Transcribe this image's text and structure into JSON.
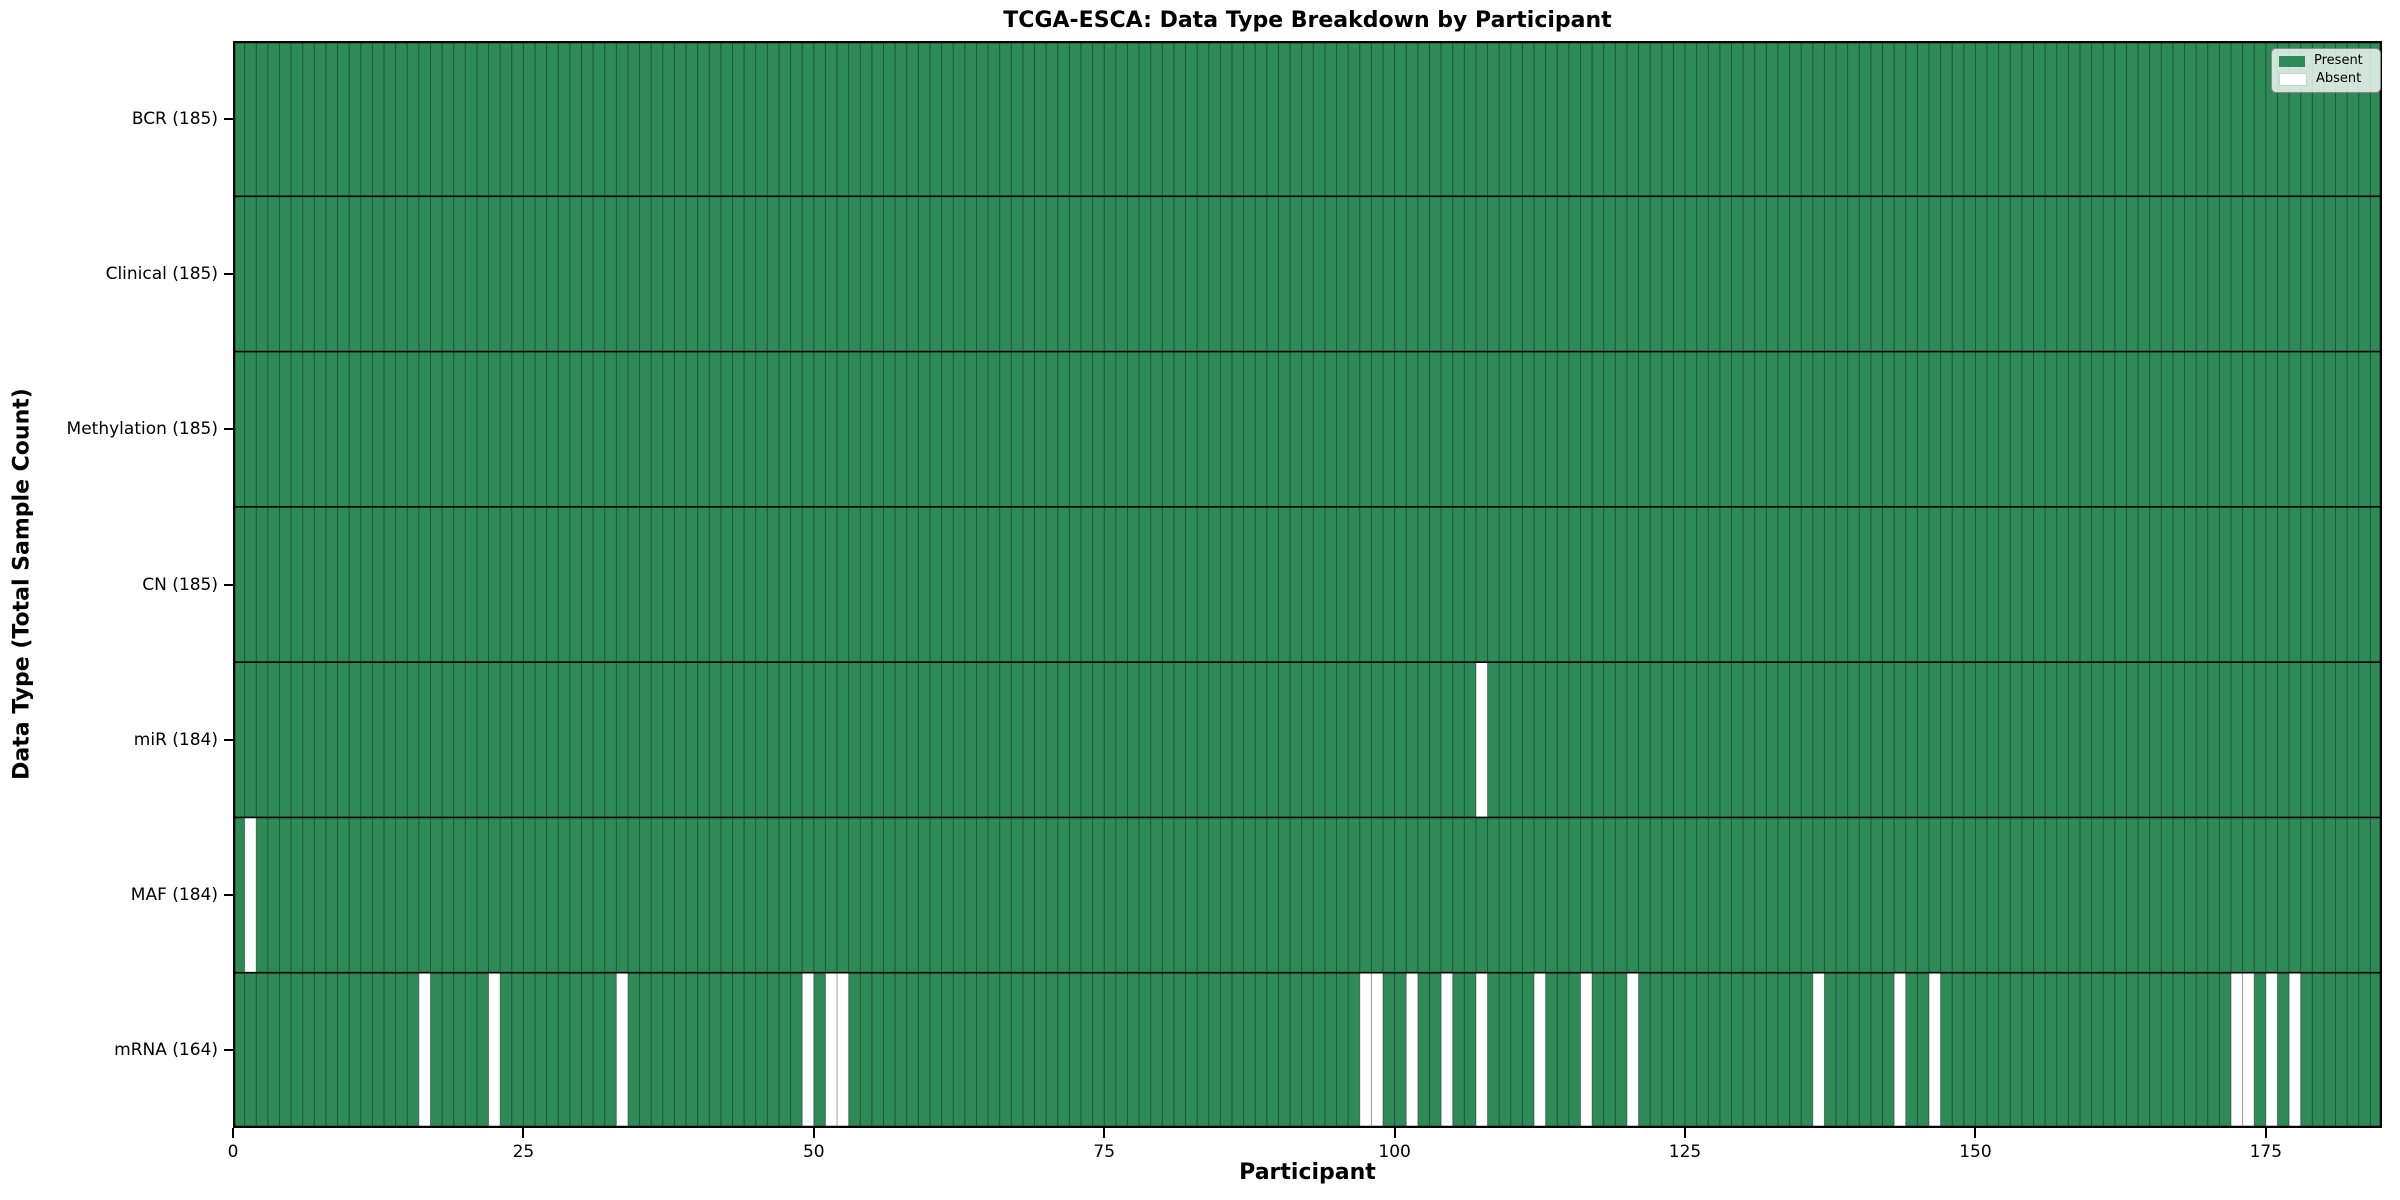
{
  "title": "TCGA-ESCA: Data Type Breakdown by Participant",
  "x_axis": {
    "label": "Participant",
    "ticks": [
      0,
      25,
      50,
      75,
      100,
      125,
      150,
      175
    ]
  },
  "y_axis": {
    "label": "Data Type (Total Sample Count)"
  },
  "legend": {
    "items": [
      {
        "label": "Present",
        "color": "#2e8b57"
      },
      {
        "label": "Absent",
        "color": "#ffffff"
      }
    ]
  },
  "colors": {
    "present": "#2e8b57",
    "absent": "#ffffff",
    "grid_line": "rgba(0,0,0,0.38)",
    "row_separator": "#000000",
    "plot_border": "#000000"
  },
  "chart_data": {
    "type": "heatmap",
    "title": "TCGA-ESCA: Data Type Breakdown by Participant",
    "xlabel": "Participant",
    "ylabel": "Data Type (Total Sample Count)",
    "n_participants": 185,
    "x_ticks": [
      0,
      25,
      50,
      75,
      100,
      125,
      150,
      175
    ],
    "legend_position": "upper right",
    "rows": [
      {
        "label": "BCR (185)",
        "present_count": 185,
        "absent_participants": []
      },
      {
        "label": "Clinical (185)",
        "present_count": 185,
        "absent_participants": []
      },
      {
        "label": "Methylation (185)",
        "present_count": 185,
        "absent_participants": []
      },
      {
        "label": "CN (185)",
        "present_count": 185,
        "absent_participants": []
      },
      {
        "label": "miR (184)",
        "present_count": 184,
        "absent_participants": [
          107
        ]
      },
      {
        "label": "MAF (184)",
        "present_count": 184,
        "absent_participants": [
          1
        ]
      },
      {
        "label": "mRNA (164)",
        "present_count": 164,
        "absent_participants": [
          16,
          22,
          33,
          49,
          51,
          52,
          97,
          98,
          101,
          104,
          107,
          112,
          116,
          120,
          136,
          143,
          146,
          172,
          173,
          175,
          177
        ]
      }
    ]
  }
}
